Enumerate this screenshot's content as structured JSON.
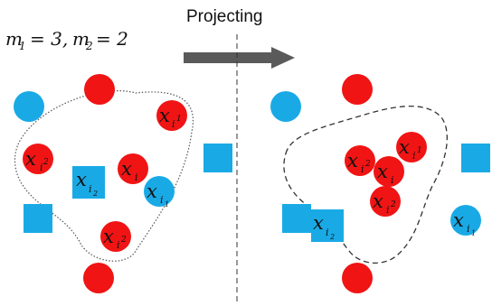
{
  "header": {
    "parameters": "m1 = 3, m2 = 2",
    "m1_symbol": "m",
    "m1_sub": "1",
    "m1_value": "= 3,",
    "m2_symbol": "m",
    "m2_sub": "2",
    "m2_value": "= 2",
    "action_label": "Projecting"
  },
  "labels": {
    "x": "x",
    "sub_i": "i",
    "sub_i1": "i",
    "sub_i1_num": "1",
    "sub_i2": "i",
    "sub_i2_num": "2"
  },
  "colors": {
    "red": "#f01414",
    "blue": "#19aae6",
    "text": "#111111",
    "divider": "#333333",
    "arrow": "#5a5a5a"
  },
  "panels": [
    "before-projection",
    "after-projection"
  ]
}
